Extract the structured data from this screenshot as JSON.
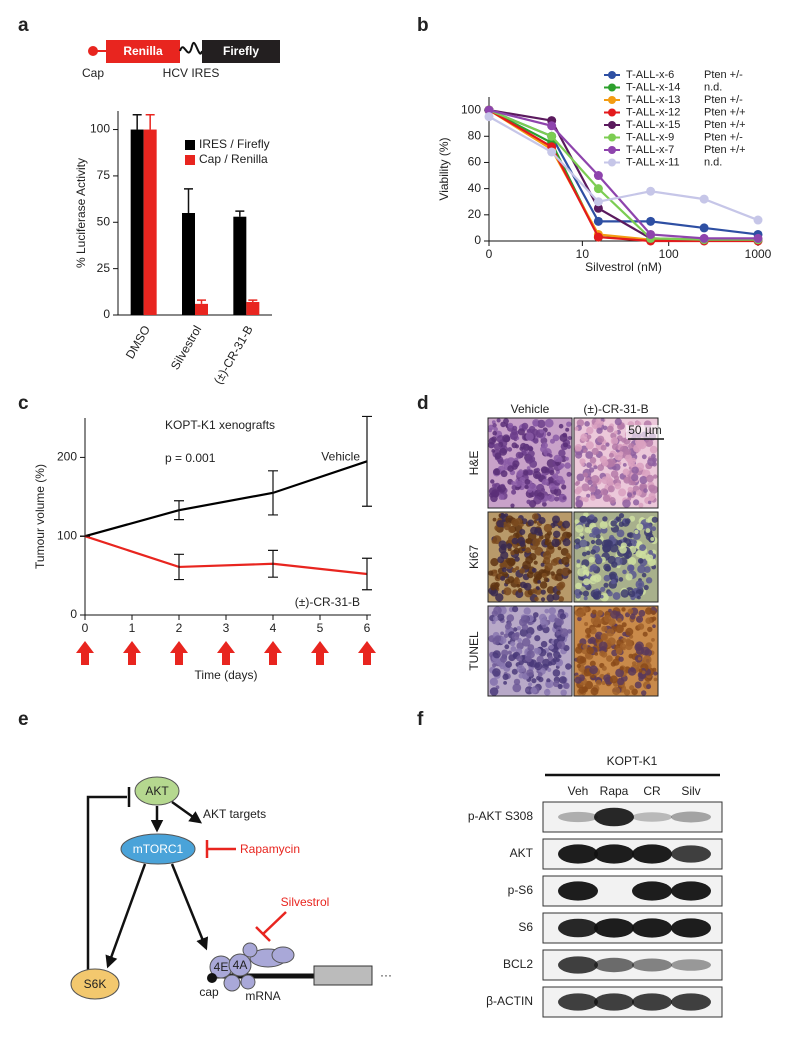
{
  "panels": [
    "a",
    "b",
    "c",
    "d",
    "e",
    "f"
  ],
  "construct": {
    "cap": "Cap",
    "renilla": "Renilla",
    "firefly": "Firefly",
    "ires": "HCV IRES"
  },
  "chart_data": [
    {
      "type": "bar",
      "ylabel": "% Luciferase Activity",
      "categories": [
        "DMSO",
        "Silvestrol",
        "(±)-CR-31-B"
      ],
      "series": [
        {
          "name": "IRES / Firefly",
          "color": "#000000",
          "values": [
            100,
            55,
            53
          ],
          "errors": [
            8,
            13,
            3
          ]
        },
        {
          "name": "Cap / Renilla",
          "color": "#e8251f",
          "values": [
            100,
            6,
            7
          ],
          "errors": [
            8,
            2,
            1
          ]
        }
      ],
      "ylim": [
        0,
        110
      ],
      "yticks": [
        0,
        25,
        50,
        75,
        100
      ],
      "legend": "upper right"
    },
    {
      "type": "line",
      "xlabel": "Silvestrol (nM)",
      "ylabel": "Viability (%)",
      "x": [
        0,
        4,
        15.6,
        62.5,
        250,
        1000
      ],
      "x_scale": "log1p",
      "xlim": [
        0,
        1000
      ],
      "xticks": [
        0,
        10,
        100,
        1000
      ],
      "ylim": [
        0,
        110
      ],
      "yticks": [
        0,
        20,
        40,
        60,
        80,
        100
      ],
      "markers": true,
      "legend": "upper right",
      "series": [
        {
          "name": "T-ALL-x-6",
          "genotype": "Pten +/-",
          "color": "#2e4fa3",
          "values": [
            100,
            80,
            15,
            15,
            10,
            5
          ]
        },
        {
          "name": "T-ALL-x-14",
          "genotype": "n.d.",
          "color": "#2ca02c",
          "values": [
            100,
            75,
            3,
            1,
            1,
            1
          ]
        },
        {
          "name": "T-ALL-x-13",
          "genotype": "Pten +/-",
          "color": "#f39c12",
          "values": [
            100,
            70,
            5,
            1,
            1,
            1
          ]
        },
        {
          "name": "T-ALL-x-12",
          "genotype": "Pten +/+",
          "color": "#e31a1c",
          "values": [
            100,
            72,
            3,
            0,
            0,
            0
          ]
        },
        {
          "name": "T-ALL-x-15",
          "genotype": "Pten +/+",
          "color": "#5b1a5e",
          "values": [
            100,
            92,
            25,
            2,
            1,
            1
          ]
        },
        {
          "name": "T-ALL-x-9",
          "genotype": "Pten +/-",
          "color": "#7ccd52",
          "values": [
            100,
            80,
            40,
            2,
            1,
            1
          ]
        },
        {
          "name": "T-ALL-x-7",
          "genotype": "Pten +/+",
          "color": "#8e44ad",
          "values": [
            100,
            88,
            50,
            5,
            2,
            2
          ]
        },
        {
          "name": "T-ALL-x-11",
          "genotype": "n.d.",
          "color": "#c6c6e8",
          "values": [
            95,
            68,
            30,
            38,
            32,
            16
          ]
        }
      ]
    },
    {
      "type": "line",
      "annotations": [
        "KOPT-K1 xenografts",
        "p = 0.001"
      ],
      "xlabel": "Time (days)",
      "ylabel": "Tumour volume (%)",
      "x": [
        0,
        2,
        4,
        6
      ],
      "xlim": [
        0,
        6
      ],
      "xticks": [
        0,
        1,
        2,
        3,
        4,
        5,
        6
      ],
      "ylim": [
        0,
        250
      ],
      "yticks": [
        0,
        100,
        200
      ],
      "series": [
        {
          "name": "Vehicle",
          "color": "#000000",
          "values": [
            100,
            133,
            155,
            195
          ],
          "errors": [
            0,
            12,
            28,
            57
          ]
        },
        {
          "name": "(±)-CR-31-B",
          "color": "#e8251f",
          "values": [
            100,
            61,
            65,
            52
          ],
          "errors": [
            0,
            16,
            17,
            20
          ]
        }
      ]
    }
  ],
  "histology": {
    "columns": [
      "Vehicle",
      "(±)-CR-31-B"
    ],
    "rows": [
      "H&E",
      "Ki67",
      "TUNEL"
    ],
    "scale_bar": "50 µm"
  },
  "pathway": {
    "akt": "AKT",
    "akt_targets": "AKT targets",
    "mtorc1": "mTORC1",
    "rapamycin": "Rapamycin",
    "silvestrol": "Silvestrol",
    "s6k": "S6K",
    "eif4e": "4E",
    "eif4a": "4A",
    "cap": "cap",
    "mrna": "mRNA",
    "ellipsis": "···"
  },
  "western_blot": {
    "cell_line": "KOPT-K1",
    "lanes": [
      "Veh",
      "Rapa",
      "CR",
      "Silv"
    ],
    "rows": [
      "p-AKT S308",
      "AKT",
      "p-S6",
      "S6",
      "BCL2",
      "β-ACTIN"
    ]
  }
}
